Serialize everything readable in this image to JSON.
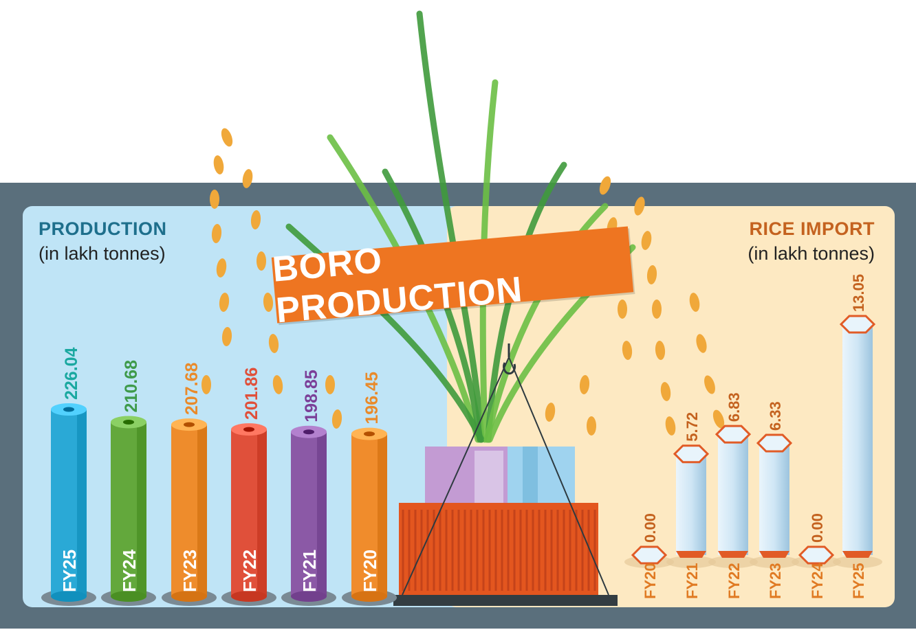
{
  "banner": {
    "title": "BORO PRODUCTION"
  },
  "production_panel": {
    "title": "PRODUCTION",
    "unit": "(in lakh tonnes)"
  },
  "import_panel": {
    "title": "RICE IMPORT",
    "unit": "(in lakh tonnes)"
  },
  "colors": {
    "frame": "#5a6f7c",
    "production_bg": "#bfe4f6",
    "import_bg": "#fde9c2",
    "banner": "#ee7521",
    "container": "#e3561f",
    "import_bar": "#d6ebf7",
    "import_accent": "#e15b26"
  },
  "chart_data": [
    {
      "type": "bar",
      "title": "PRODUCTION",
      "ylabel": "(in lakh tonnes)",
      "categories": [
        "FY25",
        "FY24",
        "FY23",
        "FY22",
        "FY21",
        "FY20"
      ],
      "values": [
        226.04,
        210.68,
        207.68,
        201.86,
        198.85,
        196.45
      ],
      "value_labels": [
        "226.04",
        "210.68",
        "207.68",
        "201.86",
        "198.85",
        "196.45"
      ],
      "colors": [
        "#2aa9d6",
        "#63a83c",
        "#ee8c2c",
        "#e0503a",
        "#8b59a6",
        "#f08c2c"
      ],
      "label_colors": [
        "#1aa8a0",
        "#3e9a4a",
        "#e98a2a",
        "#e0503a",
        "#7b3f98",
        "#e98a2a"
      ],
      "ylim": [
        0,
        226.04
      ]
    },
    {
      "type": "bar",
      "title": "RICE IMPORT",
      "ylabel": "(in lakh tonnes)",
      "categories": [
        "FY20",
        "FY21",
        "FY22",
        "FY23",
        "FY24",
        "FY25"
      ],
      "values": [
        0.0,
        5.72,
        6.83,
        6.33,
        0.0,
        13.05
      ],
      "value_labels": [
        "0.00",
        "5.72",
        "6.83",
        "6.33",
        "0.00",
        "13.05"
      ],
      "ylim": [
        0,
        13.05
      ]
    }
  ]
}
